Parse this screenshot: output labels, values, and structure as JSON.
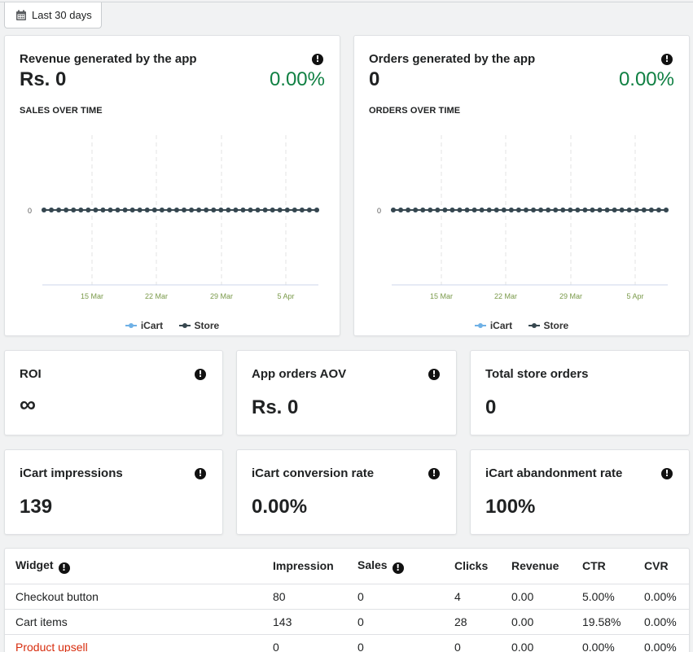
{
  "toolbar": {
    "date_range": "Last 30 days",
    "calendar_icon": "calendar-icon"
  },
  "revenue_card": {
    "title": "Revenue generated by the app",
    "value": "Rs. 0",
    "change": "0.00%",
    "chart_heading": "SALES OVER TIME"
  },
  "orders_card": {
    "title": "Orders generated by the app",
    "value": "0",
    "change": "0.00%",
    "chart_heading": "ORDERS OVER TIME"
  },
  "chart_data": [
    {
      "type": "line",
      "y_ticks": [
        "0"
      ],
      "x_ticks": [
        "15 Mar",
        "22 Mar",
        "29 Mar",
        "5 Apr"
      ],
      "series": [
        {
          "name": "iCart",
          "values": [
            0,
            0,
            0,
            0,
            0,
            0,
            0,
            0,
            0,
            0,
            0,
            0,
            0,
            0,
            0,
            0,
            0,
            0,
            0,
            0,
            0,
            0,
            0,
            0,
            0,
            0,
            0,
            0,
            0,
            0,
            0,
            0,
            0,
            0,
            0,
            0,
            0,
            0
          ]
        },
        {
          "name": "Store",
          "values": [
            0,
            0,
            0,
            0,
            0,
            0,
            0,
            0,
            0,
            0,
            0,
            0,
            0,
            0,
            0,
            0,
            0,
            0,
            0,
            0,
            0,
            0,
            0,
            0,
            0,
            0,
            0,
            0,
            0,
            0,
            0,
            0,
            0,
            0,
            0,
            0,
            0,
            0
          ]
        }
      ],
      "legend": "bottom"
    },
    {
      "type": "line",
      "y_ticks": [
        "0"
      ],
      "x_ticks": [
        "15 Mar",
        "22 Mar",
        "29 Mar",
        "5 Apr"
      ],
      "series": [
        {
          "name": "iCart",
          "values": [
            0,
            0,
            0,
            0,
            0,
            0,
            0,
            0,
            0,
            0,
            0,
            0,
            0,
            0,
            0,
            0,
            0,
            0,
            0,
            0,
            0,
            0,
            0,
            0,
            0,
            0,
            0,
            0,
            0,
            0,
            0,
            0,
            0,
            0,
            0,
            0,
            0,
            0
          ]
        },
        {
          "name": "Store",
          "values": [
            0,
            0,
            0,
            0,
            0,
            0,
            0,
            0,
            0,
            0,
            0,
            0,
            0,
            0,
            0,
            0,
            0,
            0,
            0,
            0,
            0,
            0,
            0,
            0,
            0,
            0,
            0,
            0,
            0,
            0,
            0,
            0,
            0,
            0,
            0,
            0,
            0,
            0
          ]
        }
      ],
      "legend": "bottom"
    }
  ],
  "colors": {
    "icart": "#6fb1e6",
    "store": "#37474f",
    "positive": "#108043",
    "link": "#d72c0d"
  },
  "stats": [
    {
      "title": "ROI",
      "value": "∞",
      "has_info": true
    },
    {
      "title": "App orders AOV",
      "value": "Rs. 0",
      "has_info": true
    },
    {
      "title": "Total store orders",
      "value": "0",
      "has_info": false
    },
    {
      "title": "iCart impressions",
      "value": "139",
      "has_info": true
    },
    {
      "title": "iCart conversion rate",
      "value": "0.00%",
      "has_info": true
    },
    {
      "title": "iCart abandonment rate",
      "value": "100%",
      "has_info": true
    }
  ],
  "table": {
    "headers": [
      "Widget",
      "Impression",
      "Sales",
      "Clicks",
      "Revenue",
      "CTR",
      "CVR"
    ],
    "rows": [
      [
        "Checkout button",
        "80",
        "0",
        "4",
        "0.00",
        "5.00%",
        "0.00%"
      ],
      [
        "Cart items",
        "143",
        "0",
        "28",
        "0.00",
        "19.58%",
        "0.00%"
      ],
      [
        "Product upsell",
        "0",
        "0",
        "0",
        "0.00",
        "0.00%",
        "0.00%"
      ]
    ]
  }
}
